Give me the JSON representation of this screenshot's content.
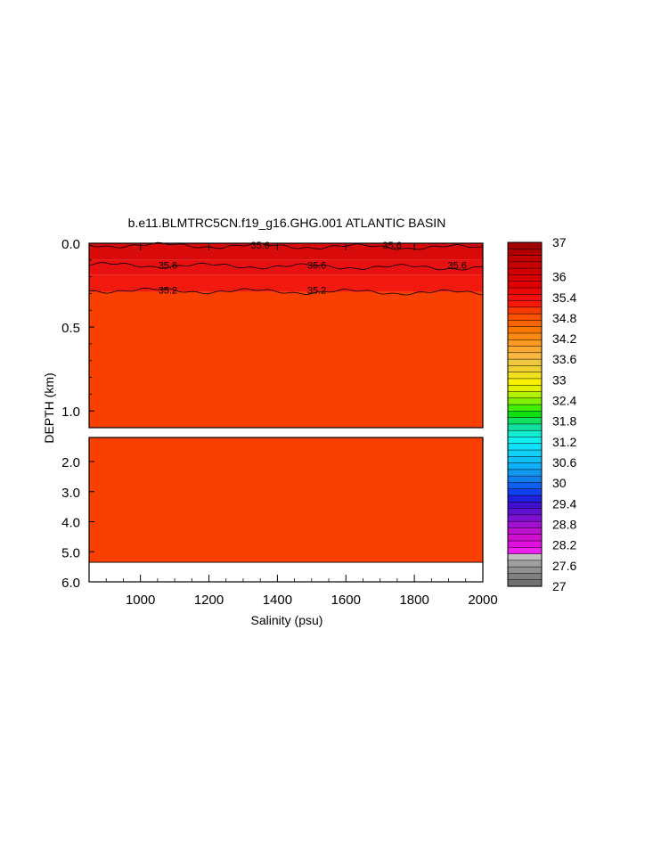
{
  "chart_data": {
    "type": "heatmap",
    "title": "b.e11.BLMTRC5CN.f19_g16.GHG.001 ATLANTIC BASIN",
    "xlabel": "Salinity (psu)",
    "ylabel": "DEPTH (km)",
    "xlim": [
      850,
      2000
    ],
    "x_ticks": [
      "1000",
      "1200",
      "1400",
      "1600",
      "1800",
      "2000"
    ],
    "x_tick_values": [
      1000,
      1200,
      1400,
      1600,
      1800,
      2000
    ],
    "upper_panel": {
      "ylim": [
        0,
        1.1
      ],
      "y_ticks": [
        "0.0",
        "0.5",
        "1.0"
      ],
      "y_tick_values": [
        0,
        0.5,
        1.0
      ],
      "layers": [
        {
          "top": 0.0,
          "bottom": 0.1,
          "value": 35.8,
          "color": "#d80a0a"
        },
        {
          "top": 0.1,
          "bottom": 0.19,
          "value": 35.6,
          "color": "#e81010"
        },
        {
          "top": 0.19,
          "bottom": 0.29,
          "value": 35.4,
          "color": "#f21a0e"
        },
        {
          "top": 0.29,
          "bottom": 1.1,
          "value": 35.0,
          "color": "#fa4000"
        }
      ],
      "contours": [
        {
          "depth": 0.01,
          "labels": [
            {
              "text": "35.6",
              "x": 1350
            },
            {
              "text": "35.6",
              "x": 1735
            }
          ]
        },
        {
          "depth": 0.13,
          "labels": [
            {
              "text": "35.6",
              "x": 1080
            },
            {
              "text": "35.6",
              "x": 1515
            },
            {
              "text": "35.6",
              "x": 1925
            }
          ]
        },
        {
          "depth": 0.28,
          "labels": [
            {
              "text": "35.2",
              "x": 1080
            },
            {
              "text": "35.2",
              "x": 1515
            }
          ]
        }
      ]
    },
    "lower_panel": {
      "ylim": [
        1.2,
        6.0
      ],
      "y_ticks": [
        "2.0",
        "3.0",
        "4.0",
        "5.0",
        "6.0"
      ],
      "y_tick_values": [
        2.0,
        3.0,
        4.0,
        5.0,
        6.0
      ],
      "fill_value": 35.0,
      "fill_color": "#fa4000",
      "bottom_depth": 5.35
    },
    "colorbar": {
      "labels": [
        "37",
        "36",
        "35.4",
        "34.8",
        "34.2",
        "33.6",
        "33",
        "32.4",
        "31.8",
        "31.2",
        "30.6",
        "30",
        "29.4",
        "28.8",
        "28.2",
        "27.6",
        "27"
      ],
      "label_values": [
        37,
        36,
        35.4,
        34.8,
        34.2,
        33.6,
        33,
        32.4,
        31.8,
        31.2,
        30.6,
        30,
        29.4,
        28.8,
        28.2,
        27.6,
        27
      ],
      "min": 27,
      "max": 37,
      "colors": [
        "#a00000",
        "#b00000",
        "#c00000",
        "#c80000",
        "#d00000",
        "#d80000",
        "#e00000",
        "#e80808",
        "#f01010",
        "#f81808",
        "#fa3a00",
        "#fa5000",
        "#fa6400",
        "#fa7800",
        "#fa8a10",
        "#fa9a20",
        "#faa830",
        "#fab840",
        "#f0c840",
        "#f0d030",
        "#f0e020",
        "#f8f000",
        "#e0f000",
        "#b0f000",
        "#80f000",
        "#40f000",
        "#10e010",
        "#10e060",
        "#10e0a0",
        "#10f0d0",
        "#10f0f0",
        "#10e0f8",
        "#10d0f8",
        "#10c0f8",
        "#10b0f8",
        "#1098f0",
        "#1080f0",
        "#1060f0",
        "#1040f0",
        "#2020e0",
        "#4010d0",
        "#6010d0",
        "#8010d0",
        "#a010d0",
        "#c010d0",
        "#d010d0",
        "#e010e0",
        "#f020f0",
        "#c0c0c0",
        "#a0a0a0",
        "#909090",
        "#808080",
        "#707070"
      ]
    }
  }
}
